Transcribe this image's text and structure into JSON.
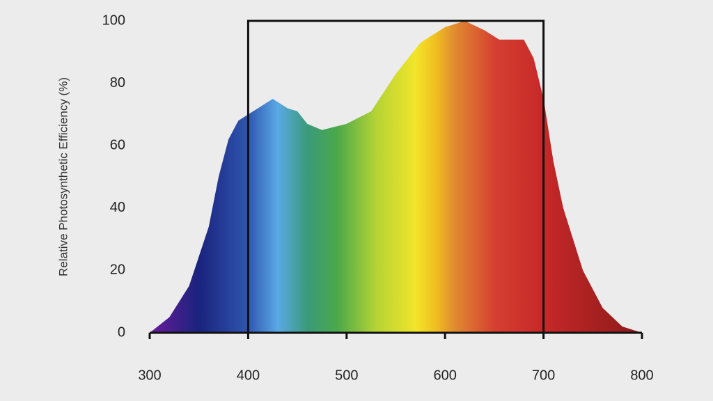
{
  "chart_data": {
    "type": "area",
    "y_label": "Relative Photosynthetic Efficiency (%)",
    "x": [
      300,
      320,
      340,
      360,
      370,
      380,
      390,
      400,
      410,
      425,
      440,
      450,
      460,
      475,
      500,
      525,
      550,
      575,
      600,
      620,
      640,
      655,
      680,
      690,
      700,
      710,
      720,
      740,
      760,
      780,
      800
    ],
    "values": [
      0,
      5,
      15,
      34,
      50,
      62,
      68,
      70,
      72,
      75,
      72,
      71,
      67,
      65,
      67,
      71,
      83,
      93,
      98,
      100,
      97,
      94,
      94,
      88,
      75,
      55,
      40,
      20,
      8,
      2,
      0
    ],
    "xlim": [
      300,
      800
    ],
    "ylim": [
      0,
      100
    ],
    "xticks": [
      300,
      400,
      500,
      600,
      700,
      800
    ],
    "yticks": [
      0,
      20,
      40,
      60,
      80,
      100
    ],
    "highlight_box": {
      "x": [
        400,
        700
      ],
      "y": [
        0,
        100
      ]
    }
  }
}
